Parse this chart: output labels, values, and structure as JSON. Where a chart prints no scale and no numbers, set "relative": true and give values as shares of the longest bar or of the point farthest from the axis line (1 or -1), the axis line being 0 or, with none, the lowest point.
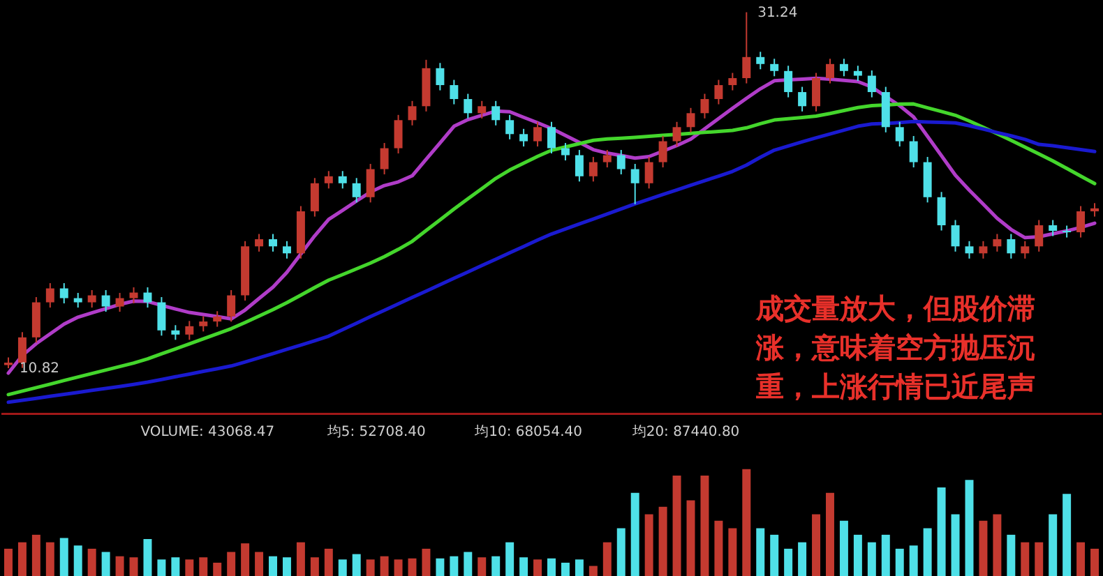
{
  "chart_data": [
    {
      "type": "candlestick",
      "tick_labels": false,
      "ylim": [
        8.2,
        31.9
      ],
      "categories": [
        null,
        null,
        null,
        null,
        null,
        null,
        null,
        null,
        null,
        null,
        null,
        null,
        null,
        null,
        null,
        null,
        null,
        null,
        null,
        null,
        null,
        null,
        null,
        null,
        null,
        null,
        null,
        null,
        null,
        null,
        null,
        null,
        null,
        null,
        null,
        null,
        null,
        null,
        null,
        null,
        null,
        null,
        null,
        null,
        null,
        null,
        null,
        null,
        null,
        null,
        null,
        null,
        null,
        null,
        null,
        null,
        null,
        null,
        null,
        null,
        null,
        null,
        null,
        null,
        null,
        null,
        null,
        null,
        null,
        null,
        null,
        null,
        null,
        null,
        null,
        null,
        null,
        null,
        null
      ],
      "ohlc": [
        [
          11.0,
          11.44,
          10.82,
          11.14
        ],
        [
          11.14,
          12.89,
          10.84,
          12.59
        ],
        [
          12.59,
          14.9,
          12.29,
          14.6
        ],
        [
          14.6,
          15.7,
          14.3,
          15.4
        ],
        [
          15.4,
          15.7,
          14.54,
          14.84
        ],
        [
          14.84,
          15.14,
          14.3,
          14.6
        ],
        [
          14.6,
          15.3,
          14.3,
          15.0
        ],
        [
          15.0,
          15.3,
          14.06,
          14.36
        ],
        [
          14.36,
          15.14,
          14.06,
          14.84
        ],
        [
          14.84,
          15.46,
          14.54,
          15.16
        ],
        [
          15.16,
          15.46,
          14.3,
          14.6
        ],
        [
          14.6,
          14.9,
          12.69,
          12.99
        ],
        [
          12.99,
          13.29,
          12.45,
          12.75
        ],
        [
          12.75,
          13.53,
          12.45,
          13.23
        ],
        [
          13.23,
          13.8,
          12.93,
          13.5
        ],
        [
          13.5,
          14.09,
          13.2,
          13.79
        ],
        [
          13.79,
          15.3,
          13.49,
          15.0
        ],
        [
          15.0,
          18.11,
          14.7,
          17.81
        ],
        [
          17.81,
          18.52,
          17.51,
          18.22
        ],
        [
          18.22,
          18.52,
          17.51,
          17.81
        ],
        [
          17.81,
          18.11,
          17.11,
          17.41
        ],
        [
          17.41,
          20.12,
          17.11,
          19.82
        ],
        [
          19.82,
          21.73,
          19.52,
          21.43
        ],
        [
          21.43,
          22.13,
          21.13,
          21.83
        ],
        [
          21.83,
          22.13,
          21.13,
          21.43
        ],
        [
          21.43,
          21.73,
          20.33,
          20.63
        ],
        [
          20.63,
          22.54,
          20.33,
          22.24
        ],
        [
          22.24,
          23.74,
          21.94,
          23.44
        ],
        [
          23.44,
          25.35,
          23.14,
          25.05
        ],
        [
          25.05,
          26.15,
          24.75,
          25.85
        ],
        [
          25.85,
          28.51,
          25.55,
          28.03
        ],
        [
          28.03,
          28.33,
          26.76,
          27.06
        ],
        [
          27.06,
          27.36,
          25.96,
          26.26
        ],
        [
          26.26,
          26.56,
          25.15,
          25.45
        ],
        [
          25.45,
          26.15,
          25.15,
          25.85
        ],
        [
          25.85,
          26.15,
          24.75,
          25.05
        ],
        [
          25.05,
          25.35,
          23.95,
          24.25
        ],
        [
          24.25,
          24.55,
          23.54,
          23.84
        ],
        [
          23.84,
          24.95,
          23.54,
          24.65
        ],
        [
          24.65,
          24.95,
          23.14,
          23.44
        ],
        [
          23.44,
          23.74,
          22.74,
          23.04
        ],
        [
          23.04,
          23.34,
          21.53,
          21.83
        ],
        [
          21.83,
          22.94,
          21.53,
          22.64
        ],
        [
          22.64,
          23.34,
          22.34,
          23.04
        ],
        [
          23.04,
          23.34,
          21.94,
          22.24
        ],
        [
          22.24,
          22.54,
          20.23,
          21.43
        ],
        [
          21.43,
          22.94,
          21.13,
          22.64
        ],
        [
          22.64,
          24.14,
          22.34,
          23.84
        ],
        [
          23.84,
          24.95,
          23.54,
          24.65
        ],
        [
          24.65,
          25.75,
          24.35,
          25.45
        ],
        [
          25.45,
          26.56,
          25.15,
          26.26
        ],
        [
          26.26,
          27.36,
          25.96,
          27.06
        ],
        [
          27.06,
          27.76,
          26.76,
          27.46
        ],
        [
          27.46,
          31.24,
          27.16,
          28.67
        ],
        [
          28.67,
          28.97,
          27.97,
          28.27
        ],
        [
          28.27,
          28.57,
          27.57,
          27.87
        ],
        [
          27.87,
          28.17,
          26.36,
          26.66
        ],
        [
          26.66,
          26.96,
          25.55,
          25.85
        ],
        [
          25.85,
          27.76,
          25.55,
          27.46
        ],
        [
          27.46,
          28.57,
          27.16,
          28.27
        ],
        [
          28.27,
          28.57,
          27.57,
          27.87
        ],
        [
          27.87,
          28.17,
          27.3,
          27.6
        ],
        [
          27.6,
          27.9,
          26.36,
          26.66
        ],
        [
          26.66,
          26.96,
          24.35,
          24.65
        ],
        [
          24.65,
          24.95,
          23.54,
          23.84
        ],
        [
          23.84,
          24.14,
          22.34,
          22.64
        ],
        [
          22.64,
          22.94,
          20.33,
          20.63
        ],
        [
          20.63,
          20.93,
          18.72,
          19.02
        ],
        [
          19.02,
          19.32,
          17.51,
          17.81
        ],
        [
          17.81,
          18.11,
          17.11,
          17.41
        ],
        [
          17.41,
          18.11,
          17.11,
          17.81
        ],
        [
          17.81,
          18.52,
          17.51,
          18.22
        ],
        [
          18.22,
          18.52,
          17.11,
          17.41
        ],
        [
          17.41,
          18.11,
          17.11,
          17.81
        ],
        [
          17.81,
          19.32,
          17.51,
          19.02
        ],
        [
          19.02,
          19.32,
          18.4,
          18.7
        ],
        [
          18.7,
          19.0,
          18.32,
          18.62
        ],
        [
          18.62,
          20.12,
          18.32,
          19.82
        ],
        [
          19.82,
          20.29,
          19.52,
          19.99
        ]
      ],
      "colors": [
        "#c43a30",
        "#c43a30",
        "#c43a30",
        "#c43a30",
        "#4fe0e8",
        "#4fe0e8",
        "#c43a30",
        "#4fe0e8",
        "#c43a30",
        "#c43a30",
        "#4fe0e8",
        "#4fe0e8",
        "#4fe0e8",
        "#c43a30",
        "#c43a30",
        "#c43a30",
        "#c43a30",
        "#c43a30",
        "#c43a30",
        "#4fe0e8",
        "#4fe0e8",
        "#c43a30",
        "#c43a30",
        "#c43a30",
        "#4fe0e8",
        "#4fe0e8",
        "#c43a30",
        "#c43a30",
        "#c43a30",
        "#c43a30",
        "#c43a30",
        "#4fe0e8",
        "#4fe0e8",
        "#4fe0e8",
        "#c43a30",
        "#4fe0e8",
        "#4fe0e8",
        "#4fe0e8",
        "#c43a30",
        "#4fe0e8",
        "#4fe0e8",
        "#4fe0e8",
        "#c43a30",
        "#c43a30",
        "#4fe0e8",
        "#4fe0e8",
        "#c43a30",
        "#c43a30",
        "#c43a30",
        "#c43a30",
        "#c43a30",
        "#c43a30",
        "#c43a30",
        "#c43a30",
        "#4fe0e8",
        "#4fe0e8",
        "#4fe0e8",
        "#4fe0e8",
        "#c43a30",
        "#c43a30",
        "#4fe0e8",
        "#4fe0e8",
        "#4fe0e8",
        "#4fe0e8",
        "#4fe0e8",
        "#4fe0e8",
        "#4fe0e8",
        "#4fe0e8",
        "#4fe0e8",
        "#4fe0e8",
        "#c43a30",
        "#c43a30",
        "#4fe0e8",
        "#c43a30",
        "#c43a30",
        "#4fe0e8",
        "#4fe0e8",
        "#c43a30",
        "#c43a30"
      ],
      "series": [
        {
          "type": "line",
          "color": "#b03cc8",
          "values": [
            10.54,
            11.55,
            12.23,
            12.79,
            13.35,
            13.75,
            14.0,
            14.24,
            14.48,
            14.67,
            14.65,
            14.43,
            14.22,
            14.02,
            13.9,
            13.78,
            13.65,
            14.16,
            14.82,
            15.47,
            16.32,
            17.37,
            18.42,
            19.36,
            19.88,
            20.41,
            20.93,
            21.3,
            21.51,
            21.86,
            22.81,
            23.75,
            24.7,
            25.08,
            25.33,
            25.57,
            25.53,
            25.21,
            24.9,
            24.57,
            24.17,
            23.77,
            23.36,
            23.16,
            23.02,
            22.87,
            22.96,
            23.27,
            23.59,
            23.96,
            24.55,
            25.14,
            25.73,
            26.3,
            26.85,
            27.31,
            27.36,
            27.4,
            27.45,
            27.4,
            27.33,
            27.26,
            26.95,
            26.41,
            25.88,
            25.23,
            24.12,
            23.01,
            21.89,
            21.03,
            20.23,
            19.42,
            18.78,
            18.31,
            18.36,
            18.53,
            18.7,
            18.9,
            19.14
          ]
        },
        {
          "type": "line",
          "color": "#44d62c",
          "values": [
            9.31,
            9.51,
            9.71,
            9.91,
            10.12,
            10.32,
            10.52,
            10.72,
            10.92,
            11.12,
            11.36,
            11.65,
            11.93,
            12.22,
            12.51,
            12.8,
            13.09,
            13.44,
            13.81,
            14.18,
            14.58,
            15.01,
            15.45,
            15.87,
            16.19,
            16.52,
            16.85,
            17.22,
            17.64,
            18.1,
            18.72,
            19.33,
            19.95,
            20.54,
            21.12,
            21.71,
            22.19,
            22.58,
            22.97,
            23.32,
            23.51,
            23.7,
            23.89,
            23.97,
            24.01,
            24.06,
            24.12,
            24.18,
            24.23,
            24.29,
            24.35,
            24.4,
            24.46,
            24.61,
            24.85,
            25.06,
            25.13,
            25.2,
            25.28,
            25.43,
            25.6,
            25.77,
            25.88,
            25.92,
            25.97,
            25.98,
            25.76,
            25.55,
            25.33,
            25.0,
            24.64,
            24.27,
            23.89,
            23.5,
            23.11,
            22.71,
            22.28,
            21.84,
            21.41
          ]
        },
        {
          "type": "line",
          "color": "#1a1ad0",
          "values": [
            8.87,
            8.98,
            9.09,
            9.21,
            9.32,
            9.43,
            9.55,
            9.66,
            9.77,
            9.89,
            10.02,
            10.17,
            10.33,
            10.48,
            10.64,
            10.79,
            10.95,
            11.18,
            11.42,
            11.66,
            11.91,
            12.15,
            12.4,
            12.66,
            13.03,
            13.4,
            13.78,
            14.14,
            14.51,
            14.88,
            15.24,
            15.61,
            15.98,
            16.34,
            16.71,
            17.07,
            17.44,
            17.8,
            18.17,
            18.52,
            18.81,
            19.1,
            19.38,
            19.67,
            19.96,
            20.25,
            20.52,
            20.79,
            21.05,
            21.32,
            21.58,
            21.84,
            22.11,
            22.47,
            22.92,
            23.33,
            23.57,
            23.81,
            24.04,
            24.26,
            24.48,
            24.7,
            24.83,
            24.86,
            24.91,
            24.97,
            24.94,
            24.92,
            24.89,
            24.73,
            24.54,
            24.34,
            24.15,
            23.95,
            23.66,
            23.58,
            23.47,
            23.36,
            23.25
          ]
        }
      ],
      "annotations": [
        "31.24",
        "10.82",
        "成交量放大，但股价滞涨，意味着空方抛压沉重，上涨行情已近尾声"
      ]
    },
    {
      "type": "bar",
      "relative": true,
      "tick_labels": false,
      "categories": [
        null,
        null,
        null,
        null,
        null,
        null,
        null,
        null,
        null,
        null,
        null,
        null,
        null,
        null,
        null,
        null,
        null,
        null,
        null,
        null,
        null,
        null,
        null,
        null,
        null,
        null,
        null,
        null,
        null,
        null,
        null,
        null,
        null,
        null,
        null,
        null,
        null,
        null,
        null,
        null,
        null,
        null,
        null,
        null,
        null,
        null,
        null,
        null,
        null,
        null,
        null,
        null,
        null,
        null,
        null,
        null,
        null,
        null,
        null,
        null,
        null,
        null,
        null,
        null,
        null,
        null,
        null,
        null,
        null,
        null,
        null,
        null,
        null,
        null,
        null,
        null,
        null,
        null,
        null
      ],
      "values": [
        0.26,
        0.32,
        0.39,
        0.32,
        0.36,
        0.29,
        0.26,
        0.23,
        0.19,
        0.18,
        0.35,
        0.16,
        0.18,
        0.16,
        0.18,
        0.13,
        0.23,
        0.31,
        0.23,
        0.19,
        0.18,
        0.32,
        0.18,
        0.26,
        0.16,
        0.21,
        0.16,
        0.19,
        0.16,
        0.17,
        0.26,
        0.17,
        0.19,
        0.23,
        0.18,
        0.19,
        0.32,
        0.18,
        0.16,
        0.17,
        0.13,
        0.16,
        0.1,
        0.32,
        0.45,
        0.78,
        0.58,
        0.65,
        0.94,
        0.71,
        0.94,
        0.52,
        0.45,
        1,
        0.45,
        0.39,
        0.26,
        0.32,
        0.58,
        0.78,
        0.52,
        0.39,
        0.32,
        0.39,
        0.26,
        0.29,
        0.45,
        0.83,
        0.58,
        0.9,
        0.52,
        0.58,
        0.39,
        0.32,
        0.32,
        0.58,
        0.77,
        0.32,
        0.26
      ],
      "colors": [
        "#c43a30",
        "#c43a30",
        "#c43a30",
        "#c43a30",
        "#4fe0e8",
        "#4fe0e8",
        "#c43a30",
        "#4fe0e8",
        "#c43a30",
        "#c43a30",
        "#4fe0e8",
        "#4fe0e8",
        "#4fe0e8",
        "#c43a30",
        "#c43a30",
        "#c43a30",
        "#c43a30",
        "#c43a30",
        "#c43a30",
        "#4fe0e8",
        "#4fe0e8",
        "#c43a30",
        "#c43a30",
        "#c43a30",
        "#4fe0e8",
        "#4fe0e8",
        "#c43a30",
        "#c43a30",
        "#c43a30",
        "#c43a30",
        "#c43a30",
        "#4fe0e8",
        "#4fe0e8",
        "#4fe0e8",
        "#c43a30",
        "#4fe0e8",
        "#4fe0e8",
        "#4fe0e8",
        "#c43a30",
        "#4fe0e8",
        "#4fe0e8",
        "#4fe0e8",
        "#c43a30",
        "#c43a30",
        "#4fe0e8",
        "#4fe0e8",
        "#c43a30",
        "#c43a30",
        "#c43a30",
        "#c43a30",
        "#c43a30",
        "#c43a30",
        "#c43a30",
        "#c43a30",
        "#4fe0e8",
        "#4fe0e8",
        "#4fe0e8",
        "#4fe0e8",
        "#c43a30",
        "#c43a30",
        "#4fe0e8",
        "#4fe0e8",
        "#4fe0e8",
        "#4fe0e8",
        "#4fe0e8",
        "#4fe0e8",
        "#4fe0e8",
        "#4fe0e8",
        "#4fe0e8",
        "#4fe0e8",
        "#c43a30",
        "#c43a30",
        "#4fe0e8",
        "#c43a30",
        "#c43a30",
        "#4fe0e8",
        "#4fe0e8",
        "#c43a30",
        "#c43a30"
      ],
      "annotations": [
        "VOLUME: 43068.47",
        "均5: 52708.40",
        "均10: 68054.40",
        "均20: 87440.80"
      ]
    }
  ]
}
